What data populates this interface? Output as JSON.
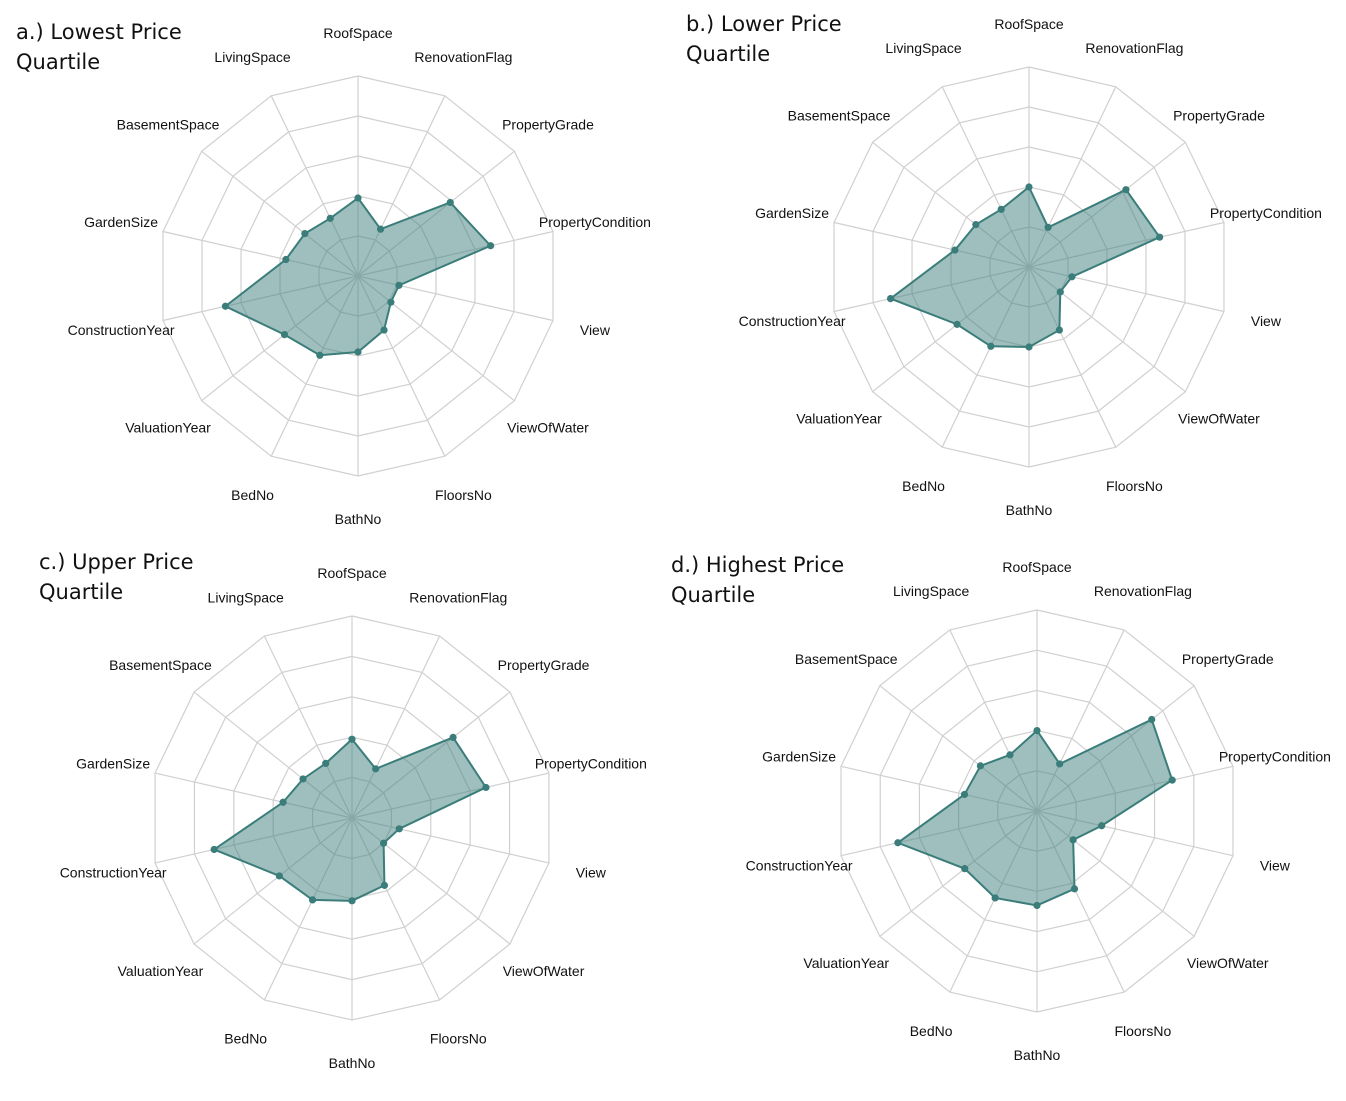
{
  "chart_data": [
    {
      "type": "radar",
      "title": [
        "a.) Lowest Price",
        "Quartile"
      ],
      "axes": [
        "RoofSpace",
        "RenovationFlag",
        "PropertyGrade",
        "PropertyCondition",
        "View",
        "ViewOfWater",
        "FloorsNo",
        "BathNo",
        "BedNo",
        "ValuationYear",
        "ConstructionYear",
        "GardenSize",
        "BasementSpace",
        "LivingSpace"
      ],
      "values": [
        0.39,
        0.26,
        0.59,
        0.68,
        0.21,
        0.21,
        0.3,
        0.38,
        0.44,
        0.47,
        0.68,
        0.37,
        0.34,
        0.32
      ],
      "range": [
        0,
        1
      ],
      "rings": 5
    },
    {
      "type": "radar",
      "title": [
        "b.) Lower Price",
        "Quartile"
      ],
      "axes": [
        "RoofSpace",
        "RenovationFlag",
        "PropertyGrade",
        "PropertyCondition",
        "View",
        "ViewOfWater",
        "FloorsNo",
        "BathNo",
        "BedNo",
        "ValuationYear",
        "ConstructionYear",
        "GardenSize",
        "BasementSpace",
        "LivingSpace"
      ],
      "values": [
        0.4,
        0.22,
        0.62,
        0.67,
        0.22,
        0.2,
        0.35,
        0.4,
        0.44,
        0.46,
        0.71,
        0.38,
        0.34,
        0.32
      ],
      "range": [
        0,
        1
      ],
      "rings": 5
    },
    {
      "type": "radar",
      "title": [
        "c.) Upper Price",
        "Quartile"
      ],
      "axes": [
        "RoofSpace",
        "RenovationFlag",
        "PropertyGrade",
        "PropertyCondition",
        "View",
        "ViewOfWater",
        "FloorsNo",
        "BathNo",
        "BedNo",
        "ValuationYear",
        "ConstructionYear",
        "GardenSize",
        "BasementSpace",
        "LivingSpace"
      ],
      "values": [
        0.39,
        0.27,
        0.64,
        0.68,
        0.24,
        0.2,
        0.37,
        0.41,
        0.45,
        0.46,
        0.7,
        0.35,
        0.31,
        0.3
      ],
      "range": [
        0,
        1
      ],
      "rings": 5
    },
    {
      "type": "radar",
      "title": [
        "d.) Highest Price",
        "Quartile"
      ],
      "axes": [
        "RoofSpace",
        "RenovationFlag",
        "PropertyGrade",
        "PropertyCondition",
        "View",
        "ViewOfWater",
        "FloorsNo",
        "BathNo",
        "BedNo",
        "ValuationYear",
        "ConstructionYear",
        "GardenSize",
        "BasementSpace",
        "LivingSpace"
      ],
      "values": [
        0.4,
        0.26,
        0.73,
        0.69,
        0.33,
        0.23,
        0.43,
        0.47,
        0.48,
        0.46,
        0.71,
        0.37,
        0.36,
        0.31
      ],
      "range": [
        0,
        1
      ],
      "rings": 5
    }
  ],
  "colors": {
    "fill": "#3d7f7d",
    "stroke": "#3a7d7a",
    "grid": "#d0d0d0"
  }
}
